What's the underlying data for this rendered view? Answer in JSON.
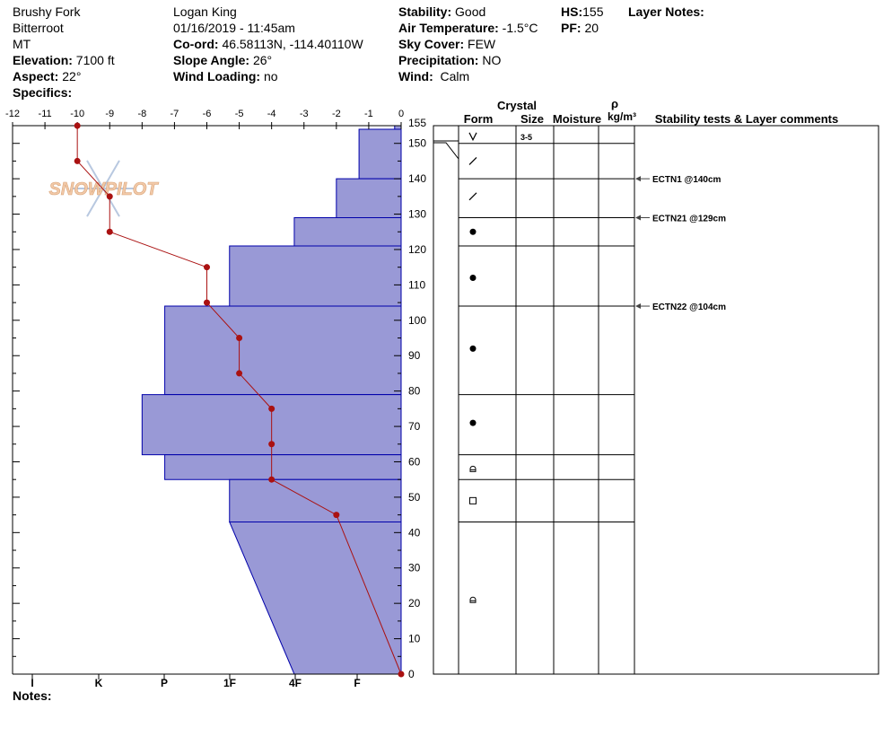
{
  "header": {
    "col1": {
      "line1": "Brushy Fork",
      "line2": "Bitterroot",
      "line3": "MT",
      "elevation_label": "Elevation:",
      "elevation": "7100 ft",
      "aspect_label": "Aspect:",
      "aspect": "22°",
      "specifics_label": "Specifics:"
    },
    "col2": {
      "observer": "Logan King",
      "datetime": "01/16/2019 - 11:45am",
      "coord_label": "Co-ord:",
      "coord": "46.58113N, -114.40110W",
      "slope_label": "Slope Angle:",
      "slope": "26°",
      "wind_loading_label": "Wind Loading:",
      "wind_loading": "no"
    },
    "col3": {
      "stability_label": "Stability:",
      "stability": "Good",
      "air_temp_label": "Air Temperature:",
      "air_temp": "-1.5°C",
      "sky_label": "Sky Cover:",
      "sky": "FEW",
      "precip_label": "Precipitation:",
      "precip": "NO",
      "wind_label": "Wind:",
      "wind": "Calm"
    },
    "col4": {
      "hs_label": "HS:",
      "hs": "155",
      "pf_label": "PF:",
      "pf": "20"
    },
    "layer_notes_label": "Layer Notes:"
  },
  "notes_label": "Notes:",
  "logo_text": "SNOWPILOT",
  "colors": {
    "hardness_fill": "#9999d6",
    "hardness_stroke": "#0000aa",
    "temp": "#aa1111",
    "logo": "#f2c9a8",
    "flake": "#b8c8e0"
  },
  "column_headers": {
    "crystal": "Crystal",
    "form": "Form",
    "size": "Size",
    "moisture": "Moisture",
    "rho": "ρ",
    "density_unit": "kg/m³",
    "stability_tests": "Stability tests & Layer comments"
  },
  "chart_data": {
    "type": "snow-profile",
    "temperature_axis": {
      "ticks": [
        "-12",
        "-11",
        "-10",
        "-9",
        "-8",
        "-7",
        "-6",
        "-5",
        "-4",
        "-3",
        "-2",
        "-1",
        "0"
      ],
      "range": [
        -12,
        0
      ],
      "unit": "°C"
    },
    "height_axis": {
      "ticks": [
        "0",
        "10",
        "20",
        "30",
        "40",
        "50",
        "60",
        "70",
        "80",
        "90",
        "100",
        "110",
        "120",
        "130",
        "140",
        "150",
        "155"
      ],
      "range": [
        0,
        155
      ],
      "unit": "cm"
    },
    "hardness_axis": {
      "ticks": [
        "I",
        "K",
        "P",
        "1F",
        "4F",
        "F"
      ]
    },
    "hardness_layers": [
      {
        "top": 155,
        "bottom": 154,
        "hardness": -0.2
      },
      {
        "top": 154,
        "bottom": 140,
        "hardness": -1.3
      },
      {
        "top": 140,
        "bottom": 129,
        "hardness": -2.0
      },
      {
        "top": 129,
        "bottom": 121,
        "hardness": -3.3
      },
      {
        "top": 121,
        "bottom": 104,
        "hardness": -5.3
      },
      {
        "top": 104,
        "bottom": 79,
        "hardness": -7.3
      },
      {
        "top": 79,
        "bottom": 62,
        "hardness": -8.0
      },
      {
        "top": 62,
        "bottom": 55,
        "hardness": -7.3
      },
      {
        "top": 55,
        "bottom": 43,
        "hardness": -5.3
      },
      {
        "top": 43,
        "bottom": 0,
        "hardness_top": -5.3,
        "hardness_bottom": -3.3
      }
    ],
    "temperature_profile": [
      {
        "height": 155,
        "temp": -10
      },
      {
        "height": 145,
        "temp": -10
      },
      {
        "height": 135,
        "temp": -9
      },
      {
        "height": 125,
        "temp": -9
      },
      {
        "height": 115,
        "temp": -6
      },
      {
        "height": 105,
        "temp": -6
      },
      {
        "height": 95,
        "temp": -5
      },
      {
        "height": 85,
        "temp": -5
      },
      {
        "height": 75,
        "temp": -4
      },
      {
        "height": 65,
        "temp": -4
      },
      {
        "height": 55,
        "temp": -4
      },
      {
        "height": 45,
        "temp": -2
      },
      {
        "height": 0,
        "temp": 0
      }
    ],
    "layer_boundaries": [
      155,
      150,
      140,
      129,
      121,
      104,
      79,
      62,
      55,
      43
    ],
    "grains": [
      {
        "height": 152,
        "form": "V",
        "size": "3-5"
      },
      {
        "height": 145,
        "form": "slash"
      },
      {
        "height": 135,
        "form": "slash"
      },
      {
        "height": 125,
        "form": "dot"
      },
      {
        "height": 112,
        "form": "dot"
      },
      {
        "height": 92,
        "form": "dot"
      },
      {
        "height": 71,
        "form": "dot"
      },
      {
        "height": 58,
        "form": "arch"
      },
      {
        "height": 49,
        "form": "square"
      },
      {
        "height": 21,
        "form": "arch"
      }
    ],
    "stability_tests": [
      {
        "height": 140,
        "label": "ECTN1 @140cm"
      },
      {
        "height": 129,
        "label": "ECTN21 @129cm"
      },
      {
        "height": 104,
        "label": "ECTN22 @104cm"
      }
    ]
  }
}
